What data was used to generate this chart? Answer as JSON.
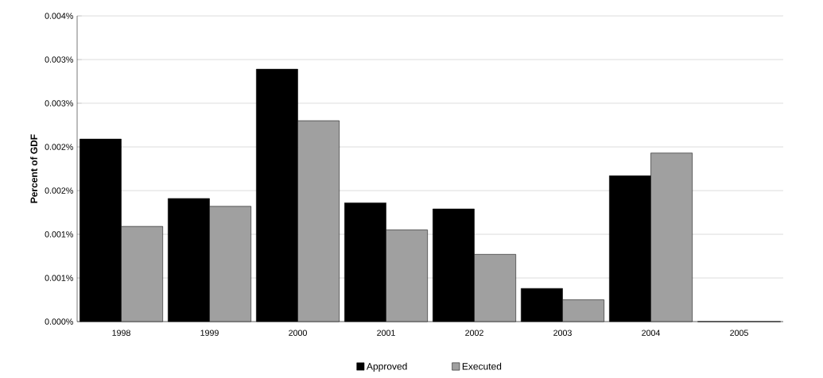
{
  "chart_data": {
    "type": "bar",
    "ylabel": "Percent of GDF",
    "categories": [
      "1998",
      "1999",
      "2000",
      "2001",
      "2002",
      "2003",
      "2004",
      "2005"
    ],
    "series": [
      {
        "name": "Approved",
        "color": "#000000",
        "values": [
          0.00209,
          0.00141,
          0.00289,
          0.00136,
          0.00129,
          0.00038,
          0.00167,
          0
        ]
      },
      {
        "name": "Executed",
        "color": "#a0a0a0",
        "values": [
          0.00109,
          0.00132,
          0.0023,
          0.00105,
          0.00077,
          0.00025,
          0.00193,
          0
        ]
      }
    ],
    "ylim": [
      0,
      0.0035
    ],
    "yticks": [
      {
        "value": 0,
        "label": "0.000%"
      },
      {
        "value": 0.0005,
        "label": "0.001%"
      },
      {
        "value": 0.001,
        "label": "0.001%"
      },
      {
        "value": 0.0015,
        "label": "0.002%"
      },
      {
        "value": 0.002,
        "label": "0.002%"
      },
      {
        "value": 0.0025,
        "label": "0.003%"
      },
      {
        "value": 0.003,
        "label": "0.003%"
      },
      {
        "value": 0.0035,
        "label": "0.004%"
      }
    ],
    "grid": "y",
    "legend": "bottom"
  }
}
